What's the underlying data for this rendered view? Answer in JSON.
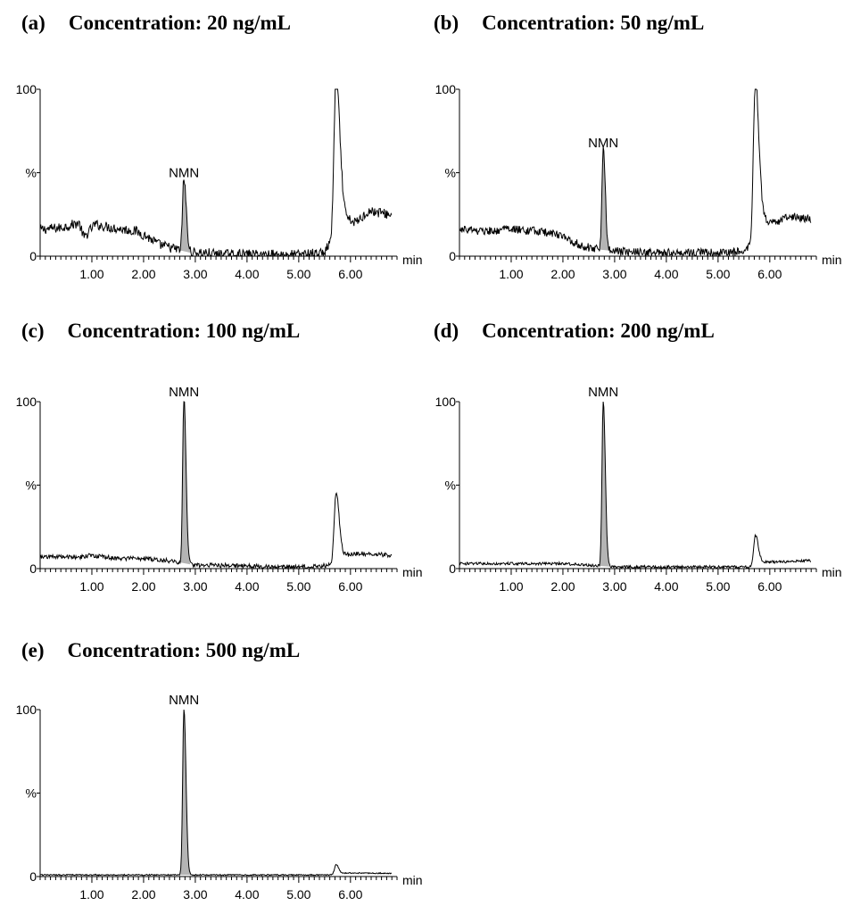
{
  "figure": {
    "axis_y_top_label": "100",
    "axis_y_mid_label": "%",
    "axis_y_zero_label": "0",
    "axis_x_unit_label": "min",
    "x_tick_labels": [
      "1.00",
      "2.00",
      "3.00",
      "4.00",
      "5.00",
      "6.00"
    ]
  },
  "chart_data": [
    {
      "type": "line",
      "panel_label": "(a)",
      "title": "Concentration: 20 ng/mL",
      "peak_label": "NMN",
      "xlim": [
        0,
        6.9
      ],
      "ylim": [
        0,
        100
      ],
      "x_ticks": [
        1.0,
        2.0,
        3.0,
        4.0,
        5.0,
        6.0
      ],
      "baseline": [
        [
          0.0,
          16
        ],
        [
          0.4,
          17
        ],
        [
          0.75,
          20
        ],
        [
          0.85,
          11
        ],
        [
          1.05,
          19
        ],
        [
          1.4,
          17
        ],
        [
          1.85,
          15
        ],
        [
          2.05,
          12
        ],
        [
          2.3,
          7
        ],
        [
          2.65,
          4
        ],
        [
          2.85,
          2
        ],
        [
          3.2,
          2
        ],
        [
          3.5,
          1
        ],
        [
          4.2,
          1
        ],
        [
          5.0,
          1
        ],
        [
          5.5,
          2
        ],
        [
          5.6,
          8
        ]
      ],
      "tail": [
        [
          5.82,
          30
        ],
        [
          5.95,
          22
        ],
        [
          6.1,
          20
        ],
        [
          6.35,
          27
        ],
        [
          6.6,
          26
        ],
        [
          6.85,
          24
        ]
      ],
      "noise": 3.0,
      "peaks": [
        {
          "name": "NMN",
          "rt": 2.78,
          "height": 44,
          "width": 0.045,
          "filled": true
        },
        {
          "name": "",
          "rt": 5.72,
          "height": 100,
          "width": 0.065,
          "filled": false
        }
      ]
    },
    {
      "type": "line",
      "panel_label": "(b)",
      "title": "Concentration: 50 ng/mL",
      "peak_label": "NMN",
      "xlim": [
        0,
        6.9
      ],
      "ylim": [
        0,
        100
      ],
      "x_ticks": [
        1.0,
        2.0,
        3.0,
        4.0,
        5.0,
        6.0
      ],
      "baseline": [
        [
          0.0,
          16
        ],
        [
          0.5,
          15
        ],
        [
          1.0,
          16
        ],
        [
          1.5,
          15
        ],
        [
          1.9,
          13
        ],
        [
          2.1,
          10
        ],
        [
          2.4,
          6
        ],
        [
          2.7,
          4
        ],
        [
          3.0,
          3
        ],
        [
          3.6,
          2
        ],
        [
          4.5,
          2
        ],
        [
          5.2,
          2
        ],
        [
          5.5,
          3
        ],
        [
          5.6,
          5
        ]
      ],
      "tail": [
        [
          5.85,
          22
        ],
        [
          6.1,
          20
        ],
        [
          6.4,
          24
        ],
        [
          6.85,
          22
        ]
      ],
      "noise": 2.5,
      "peaks": [
        {
          "name": "NMN",
          "rt": 2.78,
          "height": 62,
          "width": 0.04,
          "filled": true
        },
        {
          "name": "",
          "rt": 5.72,
          "height": 100,
          "width": 0.065,
          "filled": false
        }
      ]
    },
    {
      "type": "line",
      "panel_label": "(c)",
      "title": "Concentration: 100 ng/mL",
      "peak_label": "NMN",
      "xlim": [
        0,
        6.9
      ],
      "ylim": [
        0,
        100
      ],
      "x_ticks": [
        1.0,
        2.0,
        3.0,
        4.0,
        5.0,
        6.0
      ],
      "baseline": [
        [
          0.0,
          7
        ],
        [
          0.8,
          7
        ],
        [
          1.0,
          8
        ],
        [
          1.5,
          6
        ],
        [
          2.0,
          6
        ],
        [
          2.4,
          5
        ],
        [
          2.65,
          4
        ],
        [
          3.0,
          2
        ],
        [
          3.6,
          2
        ],
        [
          4.5,
          1
        ],
        [
          5.2,
          1
        ],
        [
          5.5,
          2
        ]
      ],
      "tail": [
        [
          5.85,
          8
        ],
        [
          6.2,
          9
        ],
        [
          6.85,
          8
        ]
      ],
      "noise": 1.3,
      "peaks": [
        {
          "name": "NMN",
          "rt": 2.78,
          "height": 100,
          "width": 0.04,
          "filled": true
        },
        {
          "name": "",
          "rt": 5.72,
          "height": 43,
          "width": 0.06,
          "filled": false
        }
      ]
    },
    {
      "type": "line",
      "panel_label": "(d)",
      "title": "Concentration: 200 ng/mL",
      "peak_label": "NMN",
      "xlim": [
        0,
        6.9
      ],
      "ylim": [
        0,
        100
      ],
      "x_ticks": [
        1.0,
        2.0,
        3.0,
        4.0,
        5.0,
        6.0
      ],
      "baseline": [
        [
          0.0,
          3
        ],
        [
          0.8,
          3
        ],
        [
          1.5,
          3
        ],
        [
          2.0,
          3
        ],
        [
          2.5,
          2
        ],
        [
          3.0,
          1
        ],
        [
          3.6,
          1
        ],
        [
          4.5,
          1
        ],
        [
          5.2,
          1
        ],
        [
          5.5,
          1
        ]
      ],
      "tail": [
        [
          5.85,
          4
        ],
        [
          6.3,
          4
        ],
        [
          6.85,
          5
        ]
      ],
      "noise": 0.8,
      "peaks": [
        {
          "name": "NMN",
          "rt": 2.78,
          "height": 100,
          "width": 0.04,
          "filled": true
        },
        {
          "name": "",
          "rt": 5.72,
          "height": 19,
          "width": 0.055,
          "filled": false
        }
      ]
    },
    {
      "type": "line",
      "panel_label": "(e)",
      "title": "Concentration: 500 ng/mL",
      "peak_label": "NMN",
      "xlim": [
        0,
        6.9
      ],
      "ylim": [
        0,
        100
      ],
      "x_ticks": [
        1.0,
        2.0,
        3.0,
        4.0,
        5.0,
        6.0
      ],
      "baseline": [
        [
          0.0,
          1
        ],
        [
          1.0,
          1
        ],
        [
          2.0,
          1
        ],
        [
          3.0,
          1
        ],
        [
          4.0,
          1
        ],
        [
          5.0,
          1
        ],
        [
          5.5,
          1
        ]
      ],
      "tail": [
        [
          5.85,
          2
        ],
        [
          6.3,
          2
        ],
        [
          6.85,
          2
        ]
      ],
      "noise": 0.35,
      "peaks": [
        {
          "name": "NMN",
          "rt": 2.78,
          "height": 100,
          "width": 0.04,
          "filled": true
        },
        {
          "name": "",
          "rt": 5.72,
          "height": 6,
          "width": 0.05,
          "filled": false
        }
      ]
    }
  ]
}
